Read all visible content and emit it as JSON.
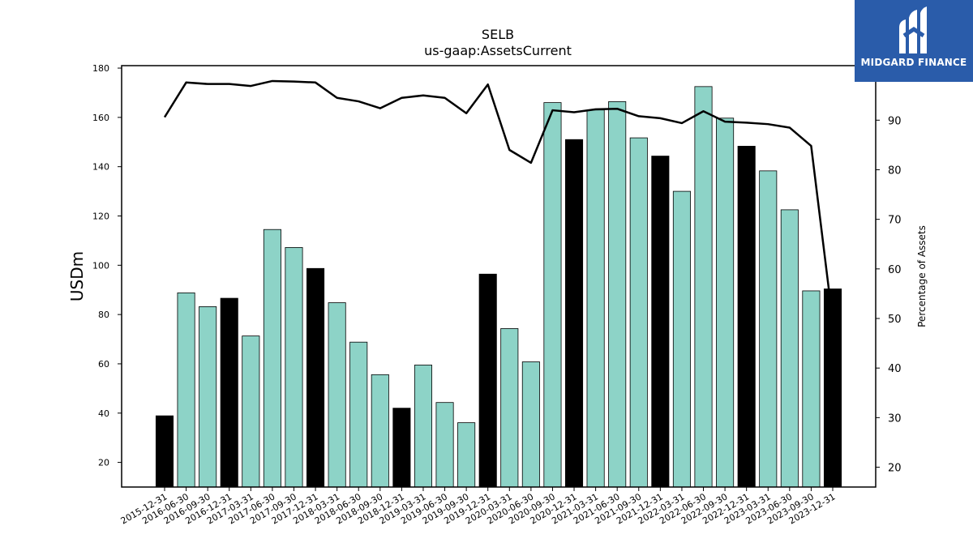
{
  "chart_data": {
    "type": "bar",
    "title": "SELB",
    "subtitle": "us-gaap:AssetsCurrent",
    "ylabel": "USDm",
    "y2label": "Percentage of Assets",
    "ylim": [
      10,
      181
    ],
    "y2lim": [
      16,
      101
    ],
    "yticks": [
      20,
      40,
      60,
      80,
      100,
      120,
      140,
      160,
      180
    ],
    "y2ticks": [
      20,
      30,
      40,
      50,
      60,
      70,
      80,
      90
    ],
    "categories": [
      "2015-12-31",
      "2016-06-30",
      "2016-09-30",
      "2016-12-31",
      "2017-03-31",
      "2017-06-30",
      "2017-09-30",
      "2017-12-31",
      "2018-03-31",
      "2018-06-30",
      "2018-09-30",
      "2018-12-31",
      "2019-03-31",
      "2019-06-30",
      "2019-09-30",
      "2019-12-31",
      "2020-03-31",
      "2020-06-30",
      "2020-09-30",
      "2020-12-31",
      "2021-03-31",
      "2021-06-30",
      "2021-09-30",
      "2021-12-31",
      "2022-03-31",
      "2022-06-30",
      "2022-09-30",
      "2022-12-31",
      "2023-03-31",
      "2023-06-30",
      "2023-09-30",
      "2023-12-31"
    ],
    "values": [
      38.9,
      88.8,
      83.2,
      86.6,
      71.3,
      114.5,
      107.2,
      98.7,
      84.8,
      68.8,
      55.6,
      42.0,
      59.5,
      44.3,
      36.1,
      96.4,
      74.3,
      60.8,
      166.0,
      151.0,
      163.0,
      166.4,
      151.7,
      144.3,
      130.0,
      172.5,
      159.7,
      148.3,
      138.3,
      122.5,
      89.6,
      90.4
    ],
    "highlight": [
      true,
      false,
      false,
      true,
      false,
      false,
      false,
      true,
      false,
      false,
      false,
      true,
      false,
      false,
      false,
      true,
      false,
      false,
      false,
      true,
      false,
      false,
      false,
      true,
      false,
      false,
      false,
      true,
      false,
      false,
      false,
      true
    ],
    "line_series": {
      "name": "Percentage of Assets",
      "values": [
        90.6,
        97.6,
        97.3,
        97.3,
        96.9,
        97.9,
        97.8,
        97.6,
        94.5,
        93.8,
        92.4,
        94.5,
        95.0,
        94.5,
        91.4,
        97.2,
        84.0,
        81.4,
        92.0,
        91.6,
        92.2,
        92.3,
        90.8,
        90.4,
        89.4,
        91.8,
        89.7,
        89.5,
        89.2,
        88.5,
        84.8,
        49.5
      ]
    },
    "colors": {
      "bar": "#8dd3c7",
      "highlight": "#000000",
      "line": "#000000"
    },
    "grid": false
  },
  "logo": {
    "text": "MIDGARD FINANCE"
  }
}
